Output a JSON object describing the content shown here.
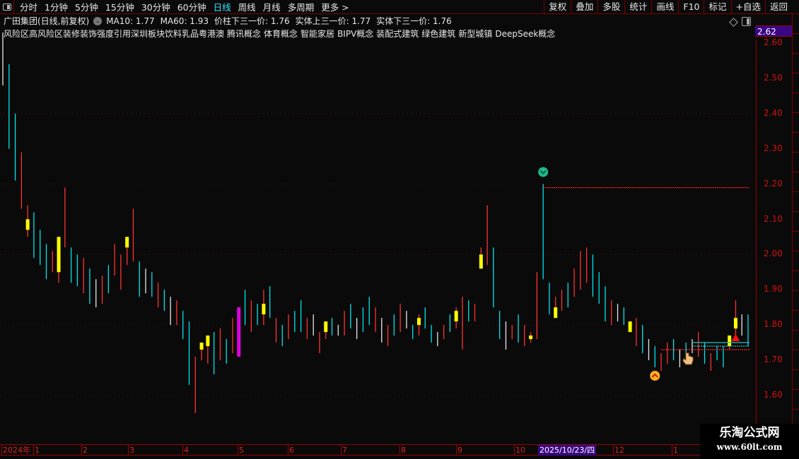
{
  "toolbar": {
    "tabs": [
      "分时",
      "1分钟",
      "5分钟",
      "15分钟",
      "30分钟",
      "60分钟",
      "日线",
      "周线",
      "月线",
      "多周期",
      "更多 >"
    ],
    "active_tab": "日线",
    "right_buttons": [
      "复权",
      "叠加",
      "多股",
      "统计",
      "画线",
      "F10",
      "标记",
      "+自选",
      "返回"
    ]
  },
  "info": {
    "title": "广田集团(日线,前复权)",
    "items": [
      "MA10: 1.77",
      "MA60: 1.93",
      "价柱下三一价: 1.76",
      "实体上三一价: 1.77",
      "实体下三一价: 1.76"
    ]
  },
  "tags": [
    "风险区高风险区装修装饰强度引用深圳板块饮料乳品粤港澳",
    "腾讯概念",
    "体育概念",
    "智能家居",
    "BIPV概念",
    "装配式建筑",
    "绿色建筑",
    "新型城镇",
    "DeepSeek概念"
  ],
  "price_box": "2.62",
  "watermark": {
    "name": "乐淘公式网",
    "url": "www.60lt.com"
  },
  "colors": {
    "up": "#ff3232",
    "down": "#00e5ee",
    "flat": "#e8e8e8",
    "signal": "#ffff00",
    "magenta": "#e000e0",
    "axis": "#d01010",
    "highlight": "#3b0784"
  },
  "chart_data": {
    "type": "candlestick",
    "ylim": [
      1.55,
      2.64
    ],
    "yticks": [
      "2.60",
      "2.50",
      "2.40",
      "2.30",
      "2.20",
      "2.10",
      "2.00",
      "1.90",
      "1.80",
      "1.70",
      "1.60"
    ],
    "grid": "dotted horizontal every 0.20",
    "xticks": [
      "2024年",
      "1",
      "2",
      "3",
      "4",
      "5",
      "6",
      "7",
      "8",
      "9",
      "10",
      "12",
      "1"
    ],
    "selected_date": "2025/10/23/四",
    "bars": [
      [
        2.63,
        2.48,
        "w"
      ],
      [
        2.54,
        2.3,
        "c"
      ],
      [
        2.4,
        2.21,
        "c"
      ],
      [
        2.29,
        2.13,
        "r"
      ],
      [
        2.14,
        2.05,
        "y",
        2.1,
        2.07
      ],
      [
        2.12,
        1.99,
        "c"
      ],
      [
        2.07,
        1.97,
        "c"
      ],
      [
        2.03,
        1.93,
        "c"
      ],
      [
        2.01,
        1.95,
        "r"
      ],
      [
        2.05,
        1.92,
        "y",
        2.05,
        1.95
      ],
      [
        2.19,
        2.02,
        "r"
      ],
      [
        2.02,
        1.92,
        "c"
      ],
      [
        2.0,
        1.91,
        "c"
      ],
      [
        1.99,
        1.89,
        "r"
      ],
      [
        1.96,
        1.86,
        "c"
      ],
      [
        1.93,
        1.85,
        "w"
      ],
      [
        1.94,
        1.86,
        "r"
      ],
      [
        1.97,
        1.89,
        "c"
      ],
      [
        2.03,
        1.94,
        "r"
      ],
      [
        2.0,
        1.9,
        "r"
      ],
      [
        2.05,
        1.97,
        "y",
        2.05,
        2.02
      ],
      [
        2.13,
        1.98,
        "r"
      ],
      [
        1.98,
        1.88,
        "c"
      ],
      [
        1.96,
        1.89,
        "w"
      ],
      [
        1.95,
        1.88,
        "c"
      ],
      [
        1.92,
        1.85,
        "r"
      ],
      [
        1.9,
        1.84,
        "c"
      ],
      [
        1.88,
        1.8,
        "w"
      ],
      [
        1.87,
        1.8,
        "r"
      ],
      [
        1.84,
        1.76,
        "c"
      ],
      [
        1.81,
        1.63,
        "c"
      ],
      [
        1.71,
        1.55,
        "r"
      ],
      [
        1.75,
        1.7,
        "y",
        1.75,
        1.73
      ],
      [
        1.77,
        1.69,
        "y",
        1.77,
        1.74
      ],
      [
        1.78,
        1.66,
        "c"
      ],
      [
        1.79,
        1.7,
        "r"
      ],
      [
        1.76,
        1.69,
        "c"
      ],
      [
        1.82,
        1.72,
        "r"
      ],
      [
        1.85,
        1.71,
        "m",
        1.85,
        1.71
      ],
      [
        1.9,
        1.8,
        "c"
      ],
      [
        1.87,
        1.78,
        "r"
      ],
      [
        1.86,
        1.8,
        "c"
      ],
      [
        1.9,
        1.8,
        "y",
        1.86,
        1.83
      ],
      [
        1.91,
        1.82,
        "c"
      ],
      [
        1.82,
        1.75,
        "r"
      ],
      [
        1.8,
        1.74,
        "c"
      ],
      [
        1.83,
        1.76,
        "r"
      ],
      [
        1.84,
        1.78,
        "c"
      ],
      [
        1.87,
        1.78,
        "c"
      ],
      [
        1.82,
        1.76,
        "r"
      ],
      [
        1.83,
        1.77,
        "w"
      ],
      [
        1.78,
        1.72,
        "r"
      ],
      [
        1.81,
        1.76,
        "y",
        1.81,
        1.78
      ],
      [
        1.82,
        1.77,
        "c"
      ],
      [
        1.8,
        1.77,
        "w"
      ],
      [
        1.84,
        1.77,
        "r"
      ],
      [
        1.86,
        1.79,
        "c"
      ],
      [
        1.82,
        1.76,
        "w"
      ],
      [
        1.85,
        1.78,
        "c"
      ],
      [
        1.88,
        1.8,
        "c"
      ],
      [
        1.85,
        1.78,
        "r"
      ],
      [
        1.82,
        1.75,
        "w"
      ],
      [
        1.8,
        1.74,
        "r"
      ],
      [
        1.83,
        1.77,
        "c"
      ],
      [
        1.86,
        1.78,
        "r"
      ],
      [
        1.84,
        1.79,
        "w"
      ],
      [
        1.8,
        1.76,
        "c"
      ],
      [
        1.83,
        1.77,
        "y",
        1.82,
        1.8
      ],
      [
        1.85,
        1.79,
        "c"
      ],
      [
        1.8,
        1.75,
        "c"
      ],
      [
        1.78,
        1.74,
        "w"
      ],
      [
        1.8,
        1.76,
        "r"
      ],
      [
        1.83,
        1.78,
        "c"
      ],
      [
        1.85,
        1.79,
        "y",
        1.84,
        1.81
      ],
      [
        1.88,
        1.73,
        "r"
      ],
      [
        1.87,
        1.81,
        "c"
      ],
      [
        1.86,
        1.81,
        "r"
      ],
      [
        2.02,
        1.96,
        "y",
        2.0,
        1.96
      ],
      [
        2.14,
        1.97,
        "r"
      ],
      [
        2.02,
        1.85,
        "c"
      ],
      [
        1.84,
        1.76,
        "c"
      ],
      [
        1.81,
        1.73,
        "w"
      ],
      [
        1.8,
        1.76,
        "r"
      ],
      [
        1.83,
        1.75,
        "c"
      ],
      [
        1.8,
        1.74,
        "r"
      ],
      [
        1.78,
        1.75,
        "y",
        1.77,
        1.76
      ],
      [
        1.95,
        1.76,
        "r"
      ],
      [
        2.2,
        1.93,
        "c"
      ],
      [
        1.92,
        1.83,
        "c"
      ],
      [
        1.88,
        1.82,
        "y",
        1.85,
        1.82
      ],
      [
        1.9,
        1.84,
        "r"
      ],
      [
        1.92,
        1.85,
        "c"
      ],
      [
        1.96,
        1.88,
        "r"
      ],
      [
        2.01,
        1.9,
        "r"
      ],
      [
        2.02,
        1.92,
        "r"
      ],
      [
        2.0,
        1.88,
        "c"
      ],
      [
        1.95,
        1.86,
        "c"
      ],
      [
        1.91,
        1.81,
        "c"
      ],
      [
        1.87,
        1.8,
        "r"
      ],
      [
        1.86,
        1.81,
        "w"
      ],
      [
        1.85,
        1.8,
        "c"
      ],
      [
        1.81,
        1.78,
        "y",
        1.81,
        1.78
      ],
      [
        1.82,
        1.74,
        "r"
      ],
      [
        1.8,
        1.72,
        "c"
      ],
      [
        1.76,
        1.7,
        "w"
      ],
      [
        1.74,
        1.68,
        "c"
      ],
      [
        1.72,
        1.67,
        "r"
      ],
      [
        1.75,
        1.69,
        "r"
      ],
      [
        1.76,
        1.7,
        "c"
      ],
      [
        1.73,
        1.68,
        "w"
      ],
      [
        1.75,
        1.7,
        "c"
      ],
      [
        1.76,
        1.72,
        "w"
      ],
      [
        1.78,
        1.71,
        "r"
      ],
      [
        1.75,
        1.69,
        "c"
      ],
      [
        1.72,
        1.67,
        "r"
      ],
      [
        1.74,
        1.7,
        "c"
      ],
      [
        1.74,
        1.68,
        "c"
      ],
      [
        1.77,
        1.73,
        "y",
        1.77,
        1.74
      ],
      [
        1.87,
        1.76,
        "y",
        1.82,
        1.79
      ],
      [
        1.83,
        1.77,
        "w"
      ],
      [
        1.83,
        1.74,
        "c"
      ]
    ],
    "lines": [
      {
        "price": 2.19,
        "from_bar": 87,
        "color": "#ff2020",
        "style": "dotted"
      },
      {
        "price": 1.73,
        "from_bar": 106,
        "color": "#ff2020",
        "style": "dotted"
      },
      {
        "price": 1.75,
        "from_bar": 111,
        "color": "#20c0c0",
        "style": "solid"
      },
      {
        "price": 1.74,
        "from_bar": 111,
        "color": "#20c0c0",
        "style": "dotted"
      }
    ],
    "markers": [
      {
        "type": "sell-signal",
        "bar": 87,
        "price": 2.21
      },
      {
        "type": "buy-signal",
        "bar": 105,
        "price": 1.68
      },
      {
        "type": "triangle-up",
        "bar": 118,
        "price": 1.76
      }
    ]
  }
}
